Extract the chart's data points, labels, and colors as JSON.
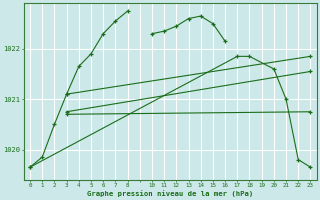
{
  "bg_color": "#cce8e8",
  "plot_bg_color": "#cce8e8",
  "grid_color": "#ffffff",
  "line_color": "#1a6e1a",
  "xlabel": "Graphe pression niveau de la mer (hPa)",
  "xlabel_color": "#1a6e1a",
  "ylabel_color": "#1a6e1a",
  "yticks": [
    1020,
    1021,
    1022
  ],
  "ylim": [
    1019.4,
    1022.9
  ],
  "xlim": [
    -0.5,
    23.5
  ],
  "series_direct": [
    {
      "x": [
        0,
        1,
        2,
        3,
        4,
        5,
        6,
        7,
        8
      ],
      "y": [
        1019.65,
        1019.85,
        1020.5,
        1021.1,
        1021.65,
        1021.9,
        1022.3,
        1022.55,
        1022.75
      ]
    },
    {
      "x": [
        10,
        11,
        12,
        13,
        14,
        15,
        16
      ],
      "y": [
        1022.3,
        1022.35,
        1022.45,
        1022.6,
        1022.65,
        1022.5,
        1022.15
      ]
    },
    {
      "x": [
        0,
        17,
        18,
        20,
        21,
        22,
        23
      ],
      "y": [
        1019.65,
        1021.85,
        1021.85,
        1021.6,
        1021.0,
        1019.8,
        1019.65
      ]
    },
    {
      "x": [
        3,
        23
      ],
      "y": [
        1021.1,
        1021.85
      ]
    },
    {
      "x": [
        3,
        23
      ],
      "y": [
        1020.75,
        1021.55
      ]
    },
    {
      "x": [
        3,
        23
      ],
      "y": [
        1020.7,
        1020.75
      ]
    }
  ]
}
